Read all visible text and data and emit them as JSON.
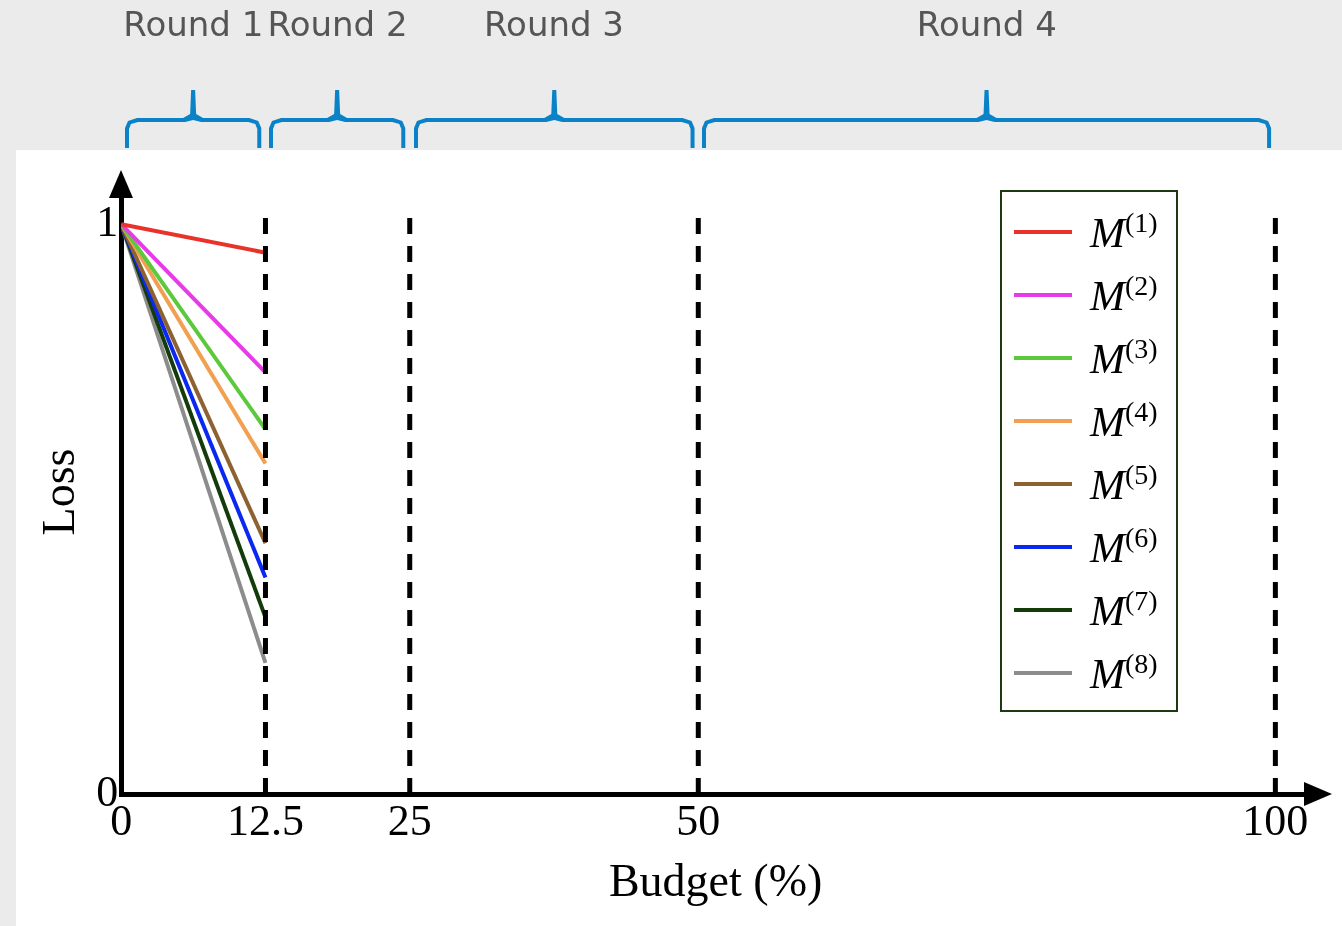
{
  "chart_data": {
    "type": "line",
    "xlabel": "Budget (%)",
    "ylabel": "Loss",
    "x": [
      0,
      12.5
    ],
    "xlim": [
      0,
      103
    ],
    "xticks": [
      0,
      12.5,
      25,
      50,
      100
    ],
    "ylim": [
      0,
      1.06
    ],
    "yticks": [
      0,
      1
    ],
    "grid": false,
    "legend": "top right",
    "marker": "none",
    "line_style": "solid",
    "series": [
      {
        "name": "M$^{(1)}$",
        "color": "#e8322a",
        "values": [
          1,
          0.95
        ]
      },
      {
        "name": "M$^{(2)}$",
        "color": "#e83ae8",
        "values": [
          1,
          0.74
        ]
      },
      {
        "name": "M$^{(3)}$",
        "color": "#5cc83c",
        "values": [
          1,
          0.64
        ]
      },
      {
        "name": "M$^{(4)}$",
        "color": "#f0a050",
        "values": [
          1,
          0.58
        ]
      },
      {
        "name": "M$^{(5)}$",
        "color": "#8c6232",
        "values": [
          1,
          0.44
        ]
      },
      {
        "name": "M$^{(6)}$",
        "color": "#0a28f0",
        "values": [
          1,
          0.38
        ]
      },
      {
        "name": "M$^{(7)}$",
        "color": "#143c0a",
        "values": [
          1,
          0.31
        ]
      },
      {
        "name": "M$^{(8)}$",
        "color": "#8c8c8c",
        "values": [
          1,
          0.23
        ]
      }
    ],
    "ref_lines": [
      {
        "axis": "x",
        "value": 12.5,
        "color": "#000000",
        "line_style": "dashed"
      },
      {
        "axis": "x",
        "value": 25,
        "color": "#000000",
        "line_style": "dashed"
      },
      {
        "axis": "x",
        "value": 50,
        "color": "#000000",
        "line_style": "dashed"
      },
      {
        "axis": "x",
        "value": 100,
        "color": "#000000",
        "line_style": "dashed"
      }
    ],
    "annotations": [
      "Round 1",
      "Round 2",
      "Round 3",
      "Round 4"
    ]
  }
}
